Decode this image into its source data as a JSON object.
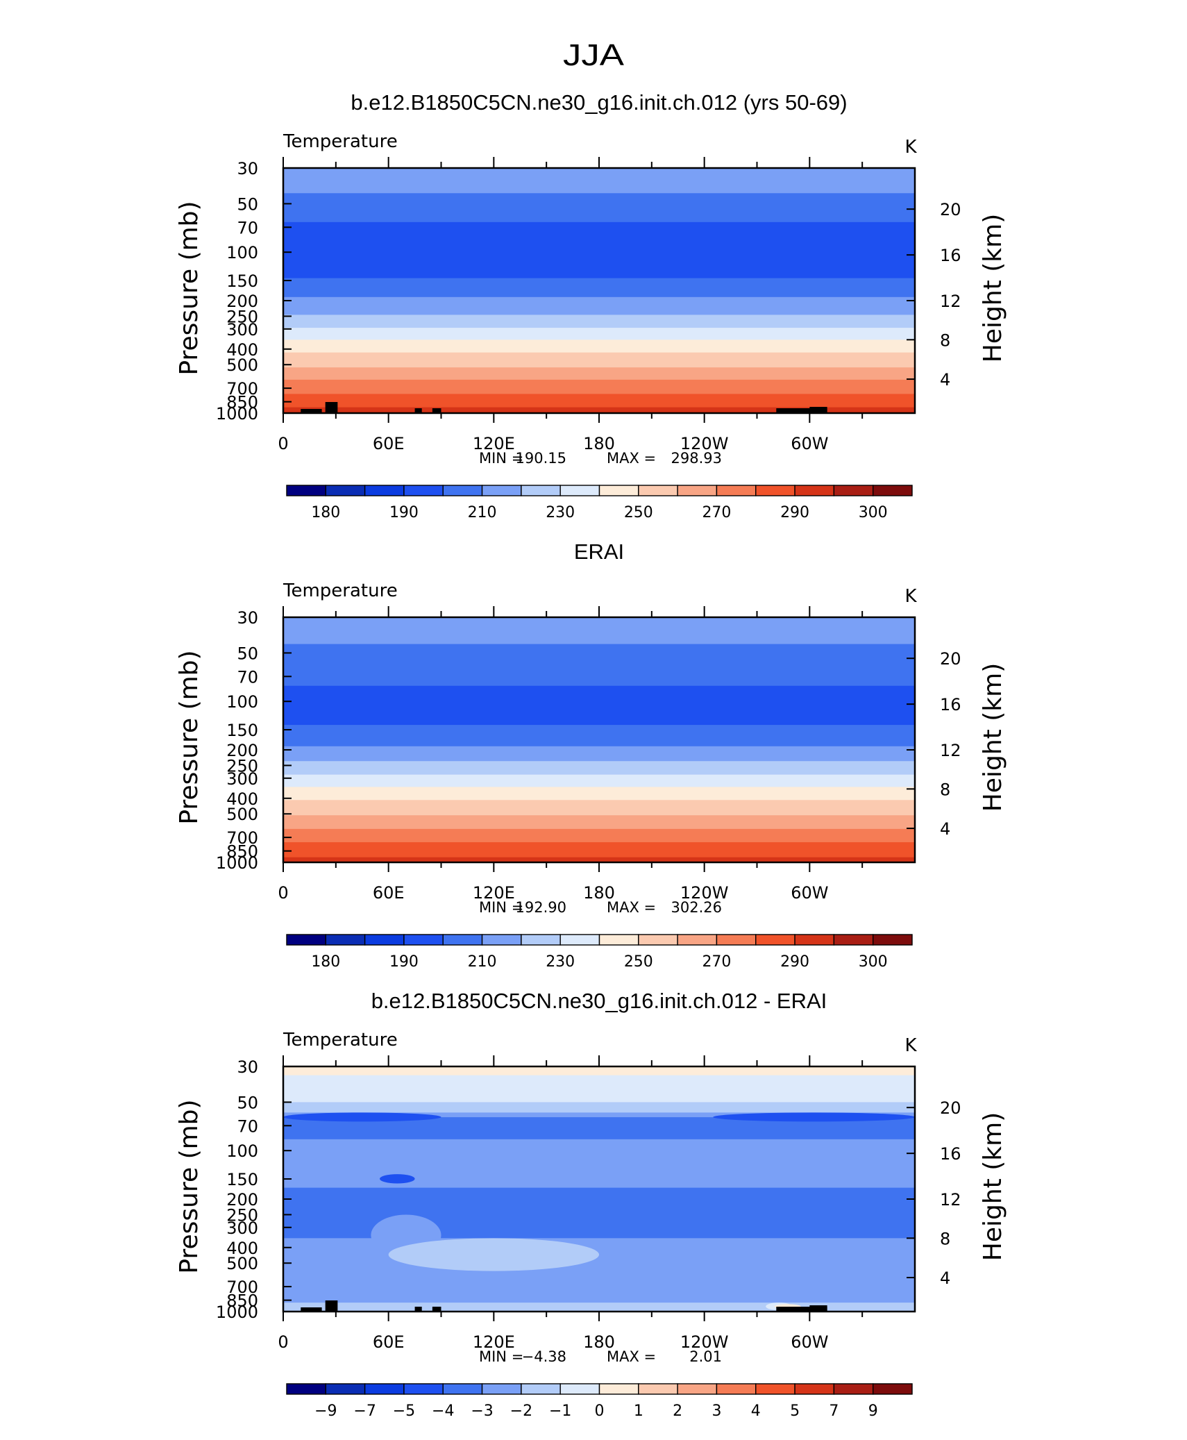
{
  "figure": {
    "title": "JJA"
  },
  "chart_data": [
    {
      "type": "heatmap",
      "title": "b.e12.B1850C5CN.ne30_g16.init.ch.012 (yrs 50-69)",
      "variable": "Temperature",
      "units": "K",
      "xticks": [
        "0",
        "60E",
        "120E",
        "180",
        "120W",
        "60W"
      ],
      "ylabel": "Pressure (mb)",
      "yticks": [
        "30",
        "50",
        "70",
        "100",
        "150",
        "200",
        "250",
        "300",
        "400",
        "500",
        "700",
        "850",
        "1000"
      ],
      "ylabel_right": "Height (km)",
      "yticks_right": [
        "20",
        "16",
        "12",
        "8",
        "4"
      ],
      "min_label": "MIN =",
      "min": "190.15",
      "max_label": "MAX =",
      "max": "298.93",
      "colorbar": {
        "colors": [
          "#000080",
          "#0a2db4",
          "#0b3ce0",
          "#1e50f0",
          "#3f73f0",
          "#7aa0f6",
          "#b2ccf8",
          "#ddeafb",
          "#fdecd9",
          "#fbcab0",
          "#f8a585",
          "#f57c55",
          "#f0532a",
          "#d53418",
          "#a91e14",
          "#7d0c0c"
        ],
        "labels": [
          "180",
          "190",
          "210",
          "230",
          "250",
          "270",
          "290",
          "300"
        ]
      },
      "bands": [
        {
          "level": 30,
          "color": "#7aa0f6"
        },
        {
          "level": 43,
          "color": "#3f73f0"
        },
        {
          "level": 65,
          "color": "#1e50f0"
        },
        {
          "level": 145,
          "color": "#3f73f0"
        },
        {
          "level": 190,
          "color": "#7aa0f6"
        },
        {
          "level": 245,
          "color": "#b2ccf8"
        },
        {
          "level": 295,
          "color": "#ddeafb"
        },
        {
          "level": 350,
          "color": "#fdecd9"
        },
        {
          "level": 420,
          "color": "#fbcab0"
        },
        {
          "level": 520,
          "color": "#f8a585"
        },
        {
          "level": 620,
          "color": "#f57c55"
        },
        {
          "level": 760,
          "color": "#f0532a"
        },
        {
          "level": 920,
          "color": "#d53418"
        },
        {
          "level": 1000
        }
      ],
      "topography": true
    },
    {
      "type": "heatmap",
      "title": "ERAI",
      "variable": "Temperature",
      "units": "K",
      "xticks": [
        "0",
        "60E",
        "120E",
        "180",
        "120W",
        "60W"
      ],
      "ylabel": "Pressure (mb)",
      "yticks": [
        "30",
        "50",
        "70",
        "100",
        "150",
        "200",
        "250",
        "300",
        "400",
        "500",
        "700",
        "850",
        "1000"
      ],
      "ylabel_right": "Height (km)",
      "yticks_right": [
        "20",
        "16",
        "12",
        "8",
        "4"
      ],
      "min_label": "MIN =",
      "min": "192.90",
      "max_label": "MAX =",
      "max": "302.26",
      "colorbar": {
        "colors": [
          "#000080",
          "#0a2db4",
          "#0b3ce0",
          "#1e50f0",
          "#3f73f0",
          "#7aa0f6",
          "#b2ccf8",
          "#ddeafb",
          "#fdecd9",
          "#fbcab0",
          "#f8a585",
          "#f57c55",
          "#f0532a",
          "#d53418",
          "#a91e14",
          "#7d0c0c"
        ],
        "labels": [
          "180",
          "190",
          "210",
          "230",
          "250",
          "270",
          "290",
          "300"
        ]
      },
      "bands": [
        {
          "level": 30,
          "color": "#7aa0f6"
        },
        {
          "level": 44,
          "color": "#3f73f0"
        },
        {
          "level": 80,
          "color": "#1e50f0"
        },
        {
          "level": 140,
          "color": "#3f73f0"
        },
        {
          "level": 190,
          "color": "#7aa0f6"
        },
        {
          "level": 235,
          "color": "#b2ccf8"
        },
        {
          "level": 285,
          "color": "#ddeafb"
        },
        {
          "level": 340,
          "color": "#fdecd9"
        },
        {
          "level": 410,
          "color": "#fbcab0"
        },
        {
          "level": 510,
          "color": "#f8a585"
        },
        {
          "level": 620,
          "color": "#f57c55"
        },
        {
          "level": 750,
          "color": "#f0532a"
        },
        {
          "level": 930,
          "color": "#d53418"
        },
        {
          "level": 1000
        }
      ],
      "topography": false
    },
    {
      "type": "heatmap",
      "title": "b.e12.B1850C5CN.ne30_g16.init.ch.012 - ERAI",
      "variable": "Temperature",
      "units": "K",
      "xticks": [
        "0",
        "60E",
        "120E",
        "180",
        "120W",
        "60W"
      ],
      "ylabel": "Pressure (mb)",
      "yticks": [
        "30",
        "50",
        "70",
        "100",
        "150",
        "200",
        "250",
        "300",
        "400",
        "500",
        "700",
        "850",
        "1000"
      ],
      "ylabel_right": "Height (km)",
      "yticks_right": [
        "20",
        "16",
        "12",
        "8",
        "4"
      ],
      "min_label": "MIN =",
      "min": "−4.38",
      "max_label": "MAX =",
      "max": "2.01",
      "colorbar": {
        "colors": [
          "#000080",
          "#0a2db4",
          "#0b3ce0",
          "#1e50f0",
          "#3f73f0",
          "#7aa0f6",
          "#b2ccf8",
          "#ddeafb",
          "#fdecd9",
          "#fbcab0",
          "#f8a585",
          "#f57c55",
          "#f0532a",
          "#d53418",
          "#a91e14",
          "#7d0c0c"
        ],
        "labels": [
          "−9",
          "−7",
          "−5",
          "−4",
          "−3",
          "−2",
          "−1",
          "0",
          "1",
          "2",
          "3",
          "4",
          "5",
          "7",
          "9"
        ]
      },
      "bands": [
        {
          "level": 30,
          "color": "#fdecd9"
        },
        {
          "level": 34,
          "color": "#ddeafb"
        },
        {
          "level": 50,
          "color": "#b2ccf8"
        },
        {
          "level": 58,
          "color": "#7aa0f6"
        },
        {
          "level": 62,
          "color": "#3f73f0"
        },
        {
          "level": 85,
          "color": "#7aa0f6"
        },
        {
          "level": 170,
          "color": "#3f73f0"
        },
        {
          "level": 350,
          "color": "#7aa0f6"
        },
        {
          "level": 880,
          "color": "#b2ccf8"
        },
        {
          "level": 1000
        }
      ],
      "patches": [
        {
          "x": [
            0,
            90
          ],
          "level": [
            58,
            66
          ],
          "color": "#1e50f0"
        },
        {
          "x": [
            245,
            360
          ],
          "level": [
            58,
            66
          ],
          "color": "#1e50f0"
        },
        {
          "x": [
            150,
            230
          ],
          "level": [
            95,
            140
          ],
          "color": "#7aa0f6"
        },
        {
          "x": [
            55,
            75
          ],
          "level": [
            140,
            160
          ],
          "color": "#1e50f0"
        },
        {
          "x": [
            50,
            90
          ],
          "level": [
            250,
            450
          ],
          "color": "#7aa0f6"
        },
        {
          "x": [
            60,
            180
          ],
          "level": [
            350,
            560
          ],
          "color": "#b2ccf8"
        },
        {
          "x": [
            275,
            290
          ],
          "level": [
            880,
            980
          ],
          "color": "#ddeafb"
        },
        {
          "x": [
            280,
            295
          ],
          "level": [
            900,
            960
          ],
          "color": "#fdecd9"
        }
      ],
      "topography": true
    }
  ]
}
